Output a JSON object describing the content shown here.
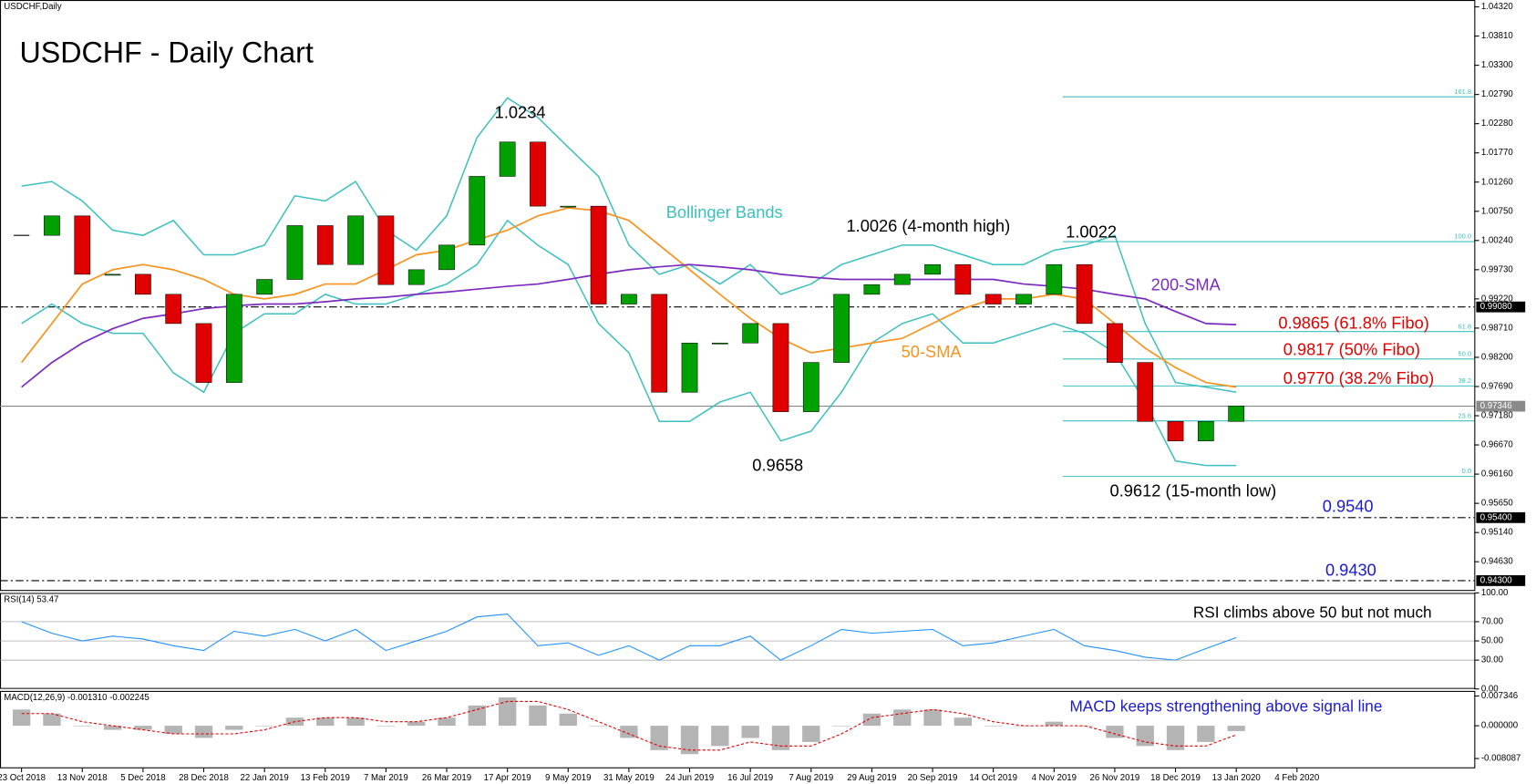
{
  "chart_data": {
    "type": "candlestick",
    "symbol": "USDCHF,Daily",
    "title": "USDCHF - Daily Chart",
    "categories": [
      "23 Oct 2018",
      null,
      "13 Nov 2018",
      null,
      "5 Dec 2018",
      null,
      "28 Dec 2018",
      null,
      "22 Jan 2019",
      null,
      "13 Feb 2019",
      null,
      "7 Mar 2019",
      null,
      "26 Mar 2019",
      null,
      "17 Apr 2019",
      null,
      "9 May 2019",
      null,
      "31 May 2019",
      null,
      "24 Jun 2019",
      null,
      "16 Jul 2019",
      null,
      "7 Aug 2019",
      null,
      "29 Aug 2019",
      null,
      "20 Sep 2019",
      null,
      "14 Oct 2019",
      null,
      "4 Nov 2019",
      null,
      "26 Nov 2019",
      null,
      "18 Dec 2019",
      null,
      "13 Jan 2020",
      null,
      "4 Feb 2020"
    ],
    "values": [
      1.0033,
      1.0067,
      0.9965,
      0.9965,
      0.993,
      0.9879,
      0.9776,
      0.993,
      0.9956,
      1.005,
      0.9982,
      1.0067,
      0.9947,
      0.9973,
      1.0016,
      1.0136,
      1.0196,
      1.0084,
      1.0084,
      0.9913,
      0.993,
      0.9759,
      0.9845,
      0.9845,
      0.9879,
      0.9725,
      0.9811,
      0.993,
      0.9947,
      0.9965,
      0.9982,
      0.993,
      0.9913,
      0.993,
      0.9982,
      0.9879,
      0.9811,
      0.9708,
      0.9674,
      0.9708,
      0.9735,
      null,
      null
    ],
    "up_color": "#00a000",
    "down_color": "#e00000",
    "bands": {
      "name": "Bollinger Bands",
      "color": "#3cbfbf",
      "upper": [
        1.0119,
        1.0127,
        1.0093,
        1.0042,
        1.0033,
        1.0059,
        0.9999,
        0.9999,
        1.0016,
        1.0102,
        1.0093,
        1.0127,
        1.0042,
        1.0007,
        1.0067,
        1.0204,
        1.0273,
        1.0239,
        1.0187,
        1.0136,
        1.0016,
        0.9965,
        0.9982,
        0.9948,
        0.9982,
        0.993,
        0.9948,
        0.9982,
        0.9999,
        1.0016,
        1.0016,
        0.9999,
        0.9982,
        0.9982,
        1.0007,
        1.0016,
        1.0033,
        0.9879,
        0.9776,
        0.9768,
        0.9759,
        null,
        null
      ],
      "lower": [
        0.9879,
        0.9913,
        0.9879,
        0.9862,
        0.9862,
        0.9793,
        0.9759,
        0.9862,
        0.9896,
        0.9896,
        0.993,
        0.9913,
        0.9913,
        0.993,
        0.9948,
        0.9982,
        1.0059,
        1.0016,
        0.9982,
        0.9879,
        0.9828,
        0.9708,
        0.9708,
        0.9742,
        0.9759,
        0.9674,
        0.9691,
        0.9759,
        0.9845,
        0.9879,
        0.9896,
        0.9845,
        0.9845,
        0.9862,
        0.9879,
        0.9862,
        0.9828,
        0.9742,
        0.9639,
        0.9631,
        0.9631,
        null,
        null
      ]
    },
    "overlays": [
      {
        "name": "50-SMA",
        "color": "#f7931e",
        "values": [
          0.9811,
          0.9879,
          0.9948,
          0.9973,
          0.9982,
          0.9973,
          0.9956,
          0.993,
          0.9922,
          0.993,
          0.9948,
          0.9948,
          0.9973,
          0.9999,
          1.0007,
          1.0025,
          1.0042,
          1.0067,
          1.0081,
          1.0076,
          1.0059,
          1.0016,
          0.9973,
          0.993,
          0.9888,
          0.9853,
          0.9828,
          0.9836,
          0.9845,
          0.9853,
          0.9879,
          0.9905,
          0.9922,
          0.9922,
          0.993,
          0.9922,
          0.9879,
          0.9836,
          0.9802,
          0.9776,
          0.9768,
          null,
          null
        ]
      },
      {
        "name": "200-SMA",
        "color": "#7b2cbf",
        "values": [
          0.9768,
          0.9811,
          0.9845,
          0.987,
          0.9888,
          0.9896,
          0.9905,
          0.991,
          0.9913,
          0.9913,
          0.9917,
          0.9922,
          0.9925,
          0.993,
          0.9934,
          0.9939,
          0.9944,
          0.9948,
          0.9956,
          0.9965,
          0.9973,
          0.9978,
          0.9982,
          0.9978,
          0.9973,
          0.9965,
          0.996,
          0.9956,
          0.9956,
          0.9956,
          0.9956,
          0.9956,
          0.9956,
          0.9948,
          0.9944,
          0.9939,
          0.993,
          0.9922,
          0.99,
          0.9879,
          0.9877,
          null,
          null
        ]
      }
    ],
    "ylim": [
      0.9412,
      1.0444
    ],
    "yticks": [
      {
        "value": 1.0432,
        "label": "1.04320"
      },
      {
        "value": 1.0381,
        "label": "1.03810"
      },
      {
        "value": 1.033,
        "label": "1.03300"
      },
      {
        "value": 1.0279,
        "label": "1.02790"
      },
      {
        "value": 1.0228,
        "label": "1.02280"
      },
      {
        "value": 1.0177,
        "label": "1.01770"
      },
      {
        "value": 1.0126,
        "label": "1.01260"
      },
      {
        "value": 1.0075,
        "label": "1.00750"
      },
      {
        "value": 1.0024,
        "label": "1.00240"
      },
      {
        "value": 0.9973,
        "label": "0.99730"
      },
      {
        "value": 0.9922,
        "label": "0.99220"
      },
      {
        "value": 0.9871,
        "label": "0.98710"
      },
      {
        "value": 0.982,
        "label": "0.98200"
      },
      {
        "value": 0.9769,
        "label": "0.97690"
      },
      {
        "value": 0.9718,
        "label": "0.97180"
      },
      {
        "value": 0.9667,
        "label": "0.96670"
      },
      {
        "value": 0.9616,
        "label": "0.96160"
      },
      {
        "value": 0.9565,
        "label": "0.95650"
      },
      {
        "value": 0.9514,
        "label": "0.95140"
      },
      {
        "value": 0.9463,
        "label": "0.94630"
      }
    ],
    "hlines": [
      {
        "value": 0.9908,
        "label": "0.99080"
      },
      {
        "value": 0.97346,
        "label": "0.97346"
      },
      {
        "value": 0.954,
        "label": "0.95400"
      },
      {
        "value": 0.943,
        "label": "0.94300"
      }
    ],
    "fibo": [
      {
        "value": 1.0275,
        "label": "161.8"
      },
      {
        "value": 1.0022,
        "label": "100.0"
      },
      {
        "value": 0.9865,
        "label": "61.8"
      },
      {
        "value": 0.9817,
        "label": "50.0"
      },
      {
        "value": 0.977,
        "label": "38.2"
      },
      {
        "value": 0.9709,
        "label": "23.6"
      },
      {
        "value": 0.9612,
        "label": "0.0"
      }
    ],
    "annotations": [
      {
        "text": "1.0234",
        "color": "#000000"
      },
      {
        "text": "1.0026 (4-month high)",
        "color": "#000000"
      },
      {
        "text": "1.0022",
        "color": "#000000"
      },
      {
        "text": "0.9865 (61.8% Fibo)",
        "color": "#e00000"
      },
      {
        "text": "0.9817 (50% Fibo)",
        "color": "#e00000"
      },
      {
        "text": "0.9770 (38.2% Fibo)",
        "color": "#e00000"
      },
      {
        "text": "0.9658",
        "color": "#000000"
      },
      {
        "text": "0.9612 (15-month low)",
        "color": "#000000"
      },
      {
        "text": "0.9540",
        "color": "#1a1ad0"
      },
      {
        "text": "0.9430",
        "color": "#1a1ad0"
      },
      {
        "text": "RSI climbs above 50 but not much",
        "color": "#000000"
      },
      {
        "text": "MACD keeps strengthening above signal line",
        "color": "#1a1ad0"
      }
    ],
    "rsi": {
      "label": "RSI(14) 53.47",
      "color": "#1e90ff",
      "values": [
        70,
        58,
        50,
        55,
        52,
        45,
        40,
        60,
        55,
        62,
        50,
        62,
        40,
        50,
        60,
        75,
        78,
        45,
        48,
        35,
        45,
        30,
        45,
        45,
        55,
        30,
        45,
        62,
        58,
        60,
        62,
        45,
        48,
        55,
        62,
        45,
        40,
        33,
        30,
        42,
        53.47,
        null,
        null
      ],
      "ylim": [
        0,
        100
      ],
      "yticks": [
        {
          "value": 100,
          "label": "100.00"
        },
        {
          "value": 70,
          "label": "70.00"
        },
        {
          "value": 50,
          "label": "50.00"
        },
        {
          "value": 30,
          "label": "30.00"
        },
        {
          "value": 0,
          "label": "0.00"
        }
      ]
    },
    "macd": {
      "label": "MACD(12,26,9) -0.001310 -0.002245",
      "hist_color": "#b4b4b4",
      "signal_color": "#e00000",
      "histogram": [
        0.004,
        0.003,
        0.0,
        -0.001,
        -0.001,
        -0.002,
        -0.003,
        -0.001,
        0.0,
        0.002,
        0.002,
        0.002,
        0.0,
        0.001,
        0.002,
        0.005,
        0.007,
        0.005,
        0.003,
        0.0,
        -0.003,
        -0.006,
        -0.007,
        -0.005,
        -0.003,
        -0.006,
        -0.004,
        0.0,
        0.003,
        0.004,
        0.004,
        0.002,
        0.0,
        0.0,
        0.001,
        0.0,
        -0.003,
        -0.005,
        -0.006,
        -0.004,
        -0.00131,
        null,
        null
      ],
      "signal": [
        0.003,
        0.003,
        0.001,
        0.0,
        -0.001,
        -0.002,
        -0.002,
        -0.002,
        -0.001,
        0.001,
        0.002,
        0.002,
        0.001,
        0.001,
        0.002,
        0.004,
        0.006,
        0.006,
        0.004,
        0.001,
        -0.002,
        -0.005,
        -0.006,
        -0.006,
        -0.004,
        -0.005,
        -0.005,
        -0.002,
        0.002,
        0.003,
        0.004,
        0.003,
        0.001,
        0.0,
        0.0,
        0.0,
        -0.002,
        -0.004,
        -0.005,
        -0.005,
        -0.002245,
        null,
        null
      ],
      "ylim": [
        -0.0105,
        0.0086
      ],
      "yticks": [
        0.007346,
        {
          "value": 0,
          "label": "0.000000"
        },
        -0.008087
      ]
    }
  }
}
